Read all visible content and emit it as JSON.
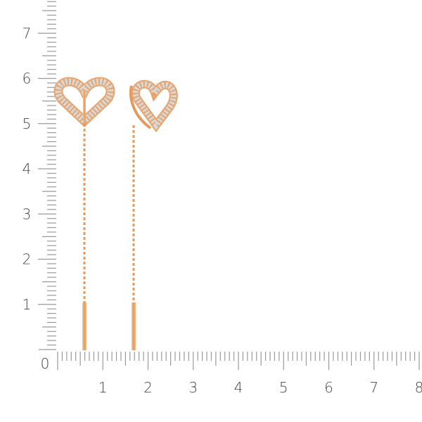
{
  "ruler": {
    "unit": "cm",
    "origin_label": "0",
    "x_labels": [
      "1",
      "2",
      "3",
      "4",
      "5",
      "6",
      "7",
      "8"
    ],
    "y_labels": [
      "1",
      "2",
      "3",
      "4",
      "5",
      "6",
      "7"
    ],
    "tick_color": "#9a9a9a",
    "label_color": "#444444"
  },
  "product": {
    "description_icon": "heart-threader-earrings",
    "metal_color": "#e8a46a",
    "stone_color": "#dcdcdc"
  }
}
